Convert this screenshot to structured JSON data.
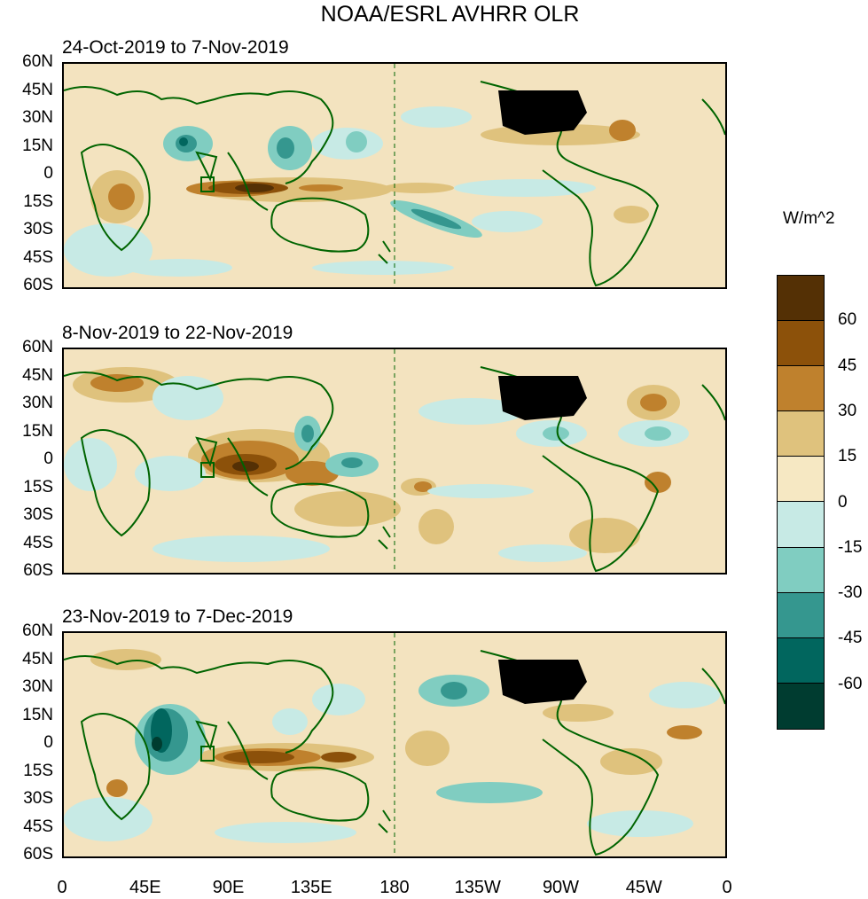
{
  "title": "NOAA/ESRL AVHRR OLR",
  "units": "W/m^2",
  "panels": [
    {
      "title": "24-Oct-2019 to 7-Nov-2019"
    },
    {
      "title": "8-Nov-2019 to 22-Nov-2019"
    },
    {
      "title": "23-Nov-2019 to 7-Dec-2019"
    }
  ],
  "y_axis_labels": [
    "60N",
    "45N",
    "30N",
    "15N",
    "0",
    "15S",
    "30S",
    "45S",
    "60S"
  ],
  "x_axis_labels": [
    "0",
    "45E",
    "90E",
    "135E",
    "180",
    "135W",
    "90W",
    "45W",
    "0"
  ],
  "colorbar": {
    "labels": [
      "60",
      "45",
      "30",
      "15",
      "0",
      "-15",
      "-30",
      "-45",
      "-60"
    ],
    "colors": [
      "#543005",
      "#8c510a",
      "#bf812d",
      "#dfc27d",
      "#f6e8c3",
      "#c7eae5",
      "#80cdc1",
      "#35978f",
      "#01665e",
      "#003c30"
    ]
  },
  "colors": {
    "coastline": "#006400",
    "background": "#f3e3bf"
  }
}
